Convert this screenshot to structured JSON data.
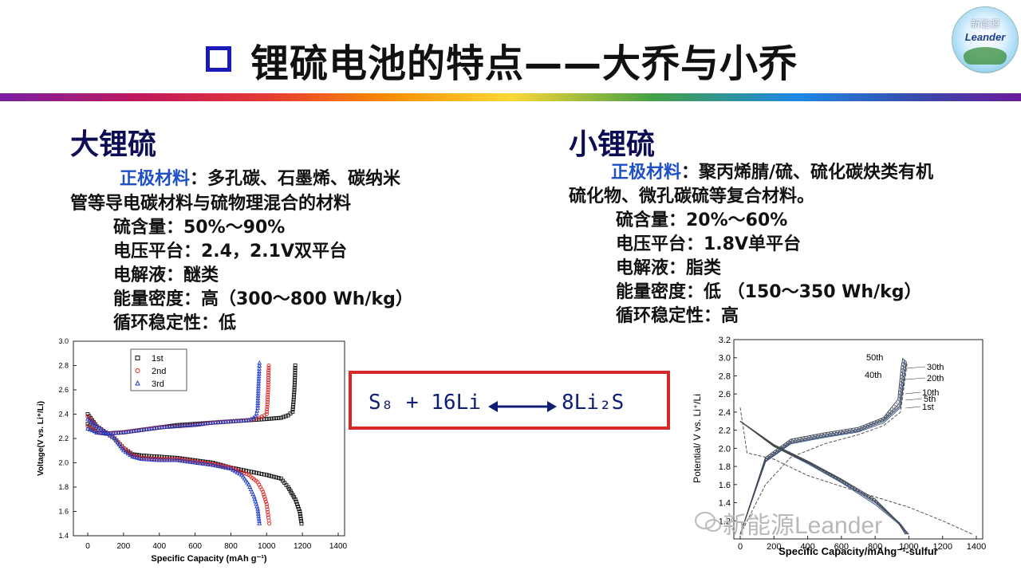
{
  "slide": {
    "title": "锂硫电池的特点——大乔与小乔",
    "logo": {
      "top_text": "新能源",
      "name": "Leander"
    },
    "left": {
      "heading": "大锂硫",
      "cathode_label": "正极材料",
      "cathode_text_1": "：多孔碳、石墨烯、碳纳米",
      "cathode_text_2": "管等导电碳材料与硫物理混合的材料",
      "sulfur_content": "硫含量：50%～90%",
      "voltage_plateau": "电压平台：2.4，2.1V双平台",
      "electrolyte": "电解液：醚类",
      "energy_density": "能量密度：高（300～800 Wh/kg）",
      "cycle_stability": "循环稳定性：低"
    },
    "right": {
      "heading": "小锂硫",
      "cathode_label": "正极材料",
      "cathode_text_1": "：聚丙烯腈/硫、硫化碳炔类有机",
      "cathode_text_2": "硫化物、微孔碳硫等复合材料。",
      "sulfur_content": "硫含量：20%～60%",
      "voltage_plateau": "电压平台：1.8V单平台",
      "electrolyte": "电解液：脂类",
      "energy_density": "能量密度：低 （150～350 Wh/kg）",
      "cycle_stability": "循环稳定性：高"
    },
    "equation": {
      "reactant": "S₈ + 16Li",
      "product": "8Li₂S"
    },
    "watermark": "新能源Leander",
    "colors": {
      "title_marker": "#1a1ab8",
      "heading": "#0d0d55",
      "label_blue": "#2050c8",
      "equation_box": "#d62828",
      "equation_text": "#0e1e73"
    }
  },
  "chart_data": [
    {
      "type": "scatter",
      "title": "",
      "xlabel": "Specific Capacity (mAh g⁻¹)",
      "ylabel": "Voltage(V vs. Li⁺/Li)",
      "xlim": [
        0,
        1400
      ],
      "ylim": [
        1.4,
        3.0
      ],
      "xticks": [
        0,
        200,
        400,
        600,
        800,
        1000,
        1200,
        1400
      ],
      "yticks": [
        1.4,
        1.6,
        1.8,
        2.0,
        2.2,
        2.4,
        2.6,
        2.8,
        3.0
      ],
      "legend": "top-center",
      "series": [
        {
          "name": "1st",
          "color": "#111111",
          "marker": "square",
          "discharge": [
            [
              0,
              2.4
            ],
            [
              50,
              2.3
            ],
            [
              100,
              2.25
            ],
            [
              150,
              2.2
            ],
            [
              200,
              2.12
            ],
            [
              250,
              2.07
            ],
            [
              300,
              2.06
            ],
            [
              400,
              2.05
            ],
            [
              500,
              2.04
            ],
            [
              600,
              2.02
            ],
            [
              700,
              2.0
            ],
            [
              800,
              1.96
            ],
            [
              900,
              1.93
            ],
            [
              1000,
              1.9
            ],
            [
              1080,
              1.87
            ],
            [
              1120,
              1.8
            ],
            [
              1160,
              1.7
            ],
            [
              1185,
              1.6
            ],
            [
              1195,
              1.5
            ]
          ],
          "charge": [
            [
              0,
              2.32
            ],
            [
              50,
              2.25
            ],
            [
              100,
              2.24
            ],
            [
              200,
              2.25
            ],
            [
              300,
              2.27
            ],
            [
              400,
              2.29
            ],
            [
              500,
              2.31
            ],
            [
              600,
              2.32
            ],
            [
              700,
              2.33
            ],
            [
              800,
              2.34
            ],
            [
              900,
              2.35
            ],
            [
              1000,
              2.36
            ],
            [
              1080,
              2.37
            ],
            [
              1120,
              2.39
            ],
            [
              1145,
              2.42
            ],
            [
              1150,
              2.5
            ],
            [
              1155,
              2.6
            ],
            [
              1158,
              2.7
            ],
            [
              1160,
              2.8
            ]
          ]
        },
        {
          "name": "2nd",
          "color": "#e01e1e",
          "marker": "circle",
          "discharge": [
            [
              0,
              2.38
            ],
            [
              50,
              2.3
            ],
            [
              100,
              2.25
            ],
            [
              150,
              2.2
            ],
            [
              200,
              2.12
            ],
            [
              250,
              2.06
            ],
            [
              300,
              2.04
            ],
            [
              400,
              2.03
            ],
            [
              500,
              2.03
            ],
            [
              600,
              2.01
            ],
            [
              700,
              1.99
            ],
            [
              800,
              1.96
            ],
            [
              900,
              1.9
            ],
            [
              950,
              1.84
            ],
            [
              980,
              1.76
            ],
            [
              1000,
              1.66
            ],
            [
              1010,
              1.55
            ],
            [
              1015,
              1.5
            ]
          ],
          "charge": [
            [
              0,
              2.3
            ],
            [
              50,
              2.25
            ],
            [
              100,
              2.24
            ],
            [
              200,
              2.25
            ],
            [
              300,
              2.27
            ],
            [
              400,
              2.29
            ],
            [
              500,
              2.3
            ],
            [
              600,
              2.31
            ],
            [
              700,
              2.33
            ],
            [
              800,
              2.34
            ],
            [
              900,
              2.35
            ],
            [
              960,
              2.37
            ],
            [
              1000,
              2.4
            ],
            [
              1005,
              2.5
            ],
            [
              1008,
              2.6
            ],
            [
              1010,
              2.7
            ],
            [
              1012,
              2.8
            ]
          ]
        },
        {
          "name": "3rd",
          "color": "#1e3cc8",
          "marker": "triangle",
          "discharge": [
            [
              0,
              2.36
            ],
            [
              50,
              2.3
            ],
            [
              100,
              2.25
            ],
            [
              150,
              2.2
            ],
            [
              200,
              2.1
            ],
            [
              250,
              2.05
            ],
            [
              300,
              2.03
            ],
            [
              400,
              2.02
            ],
            [
              500,
              2.02
            ],
            [
              600,
              2.0
            ],
            [
              700,
              1.98
            ],
            [
              800,
              1.95
            ],
            [
              860,
              1.9
            ],
            [
              900,
              1.82
            ],
            [
              930,
              1.72
            ],
            [
              950,
              1.62
            ],
            [
              960,
              1.5
            ]
          ],
          "charge": [
            [
              0,
              2.28
            ],
            [
              50,
              2.25
            ],
            [
              100,
              2.24
            ],
            [
              200,
              2.25
            ],
            [
              300,
              2.27
            ],
            [
              400,
              2.29
            ],
            [
              500,
              2.3
            ],
            [
              600,
              2.31
            ],
            [
              700,
              2.33
            ],
            [
              800,
              2.34
            ],
            [
              900,
              2.35
            ],
            [
              940,
              2.38
            ],
            [
              950,
              2.45
            ],
            [
              952,
              2.55
            ],
            [
              955,
              2.65
            ],
            [
              958,
              2.75
            ],
            [
              960,
              2.82
            ]
          ]
        }
      ]
    },
    {
      "type": "line",
      "title": "",
      "xlabel": "Specific Capacity/mAhg⁻¹-sulfur",
      "ylabel": "Potential/ V vs. Li⁺/Li",
      "xlim": [
        0,
        1400
      ],
      "ylim": [
        1.0,
        3.2
      ],
      "xticks": [
        0,
        200,
        400,
        600,
        800,
        1000,
        1200,
        1400
      ],
      "yticks": [
        1.2,
        1.4,
        1.6,
        1.8,
        2.0,
        2.2,
        2.4,
        2.6,
        2.8,
        3.0,
        3.2
      ],
      "labels": [
        "50th",
        "30th",
        "40th",
        "20th",
        "10th",
        "5th",
        "1st"
      ],
      "series": [
        {
          "name": "1st",
          "discharge": [
            [
              0,
              2.45
            ],
            [
              40,
              1.95
            ],
            [
              200,
              1.88
            ],
            [
              400,
              1.7
            ],
            [
              700,
              1.52
            ],
            [
              1000,
              1.35
            ],
            [
              1200,
              1.2
            ],
            [
              1380,
              1.05
            ]
          ],
          "charge": [
            [
              0,
              1.05
            ],
            [
              150,
              1.6
            ],
            [
              300,
              1.9
            ],
            [
              500,
              2.05
            ],
            [
              700,
              2.15
            ],
            [
              850,
              2.25
            ],
            [
              950,
              2.4
            ],
            [
              980,
              2.8
            ],
            [
              990,
              2.95
            ]
          ]
        },
        {
          "name": "5th",
          "discharge": [
            [
              0,
              2.3
            ],
            [
              200,
              2.02
            ],
            [
              400,
              1.83
            ],
            [
              600,
              1.62
            ],
            [
              800,
              1.38
            ],
            [
              950,
              1.15
            ],
            [
              1000,
              1.05
            ]
          ],
          "charge": [
            [
              0,
              1.05
            ],
            [
              150,
              1.85
            ],
            [
              300,
              2.05
            ],
            [
              500,
              2.12
            ],
            [
              700,
              2.18
            ],
            [
              850,
              2.28
            ],
            [
              950,
              2.45
            ],
            [
              975,
              2.8
            ],
            [
              985,
              2.95
            ]
          ]
        },
        {
          "name": "10th",
          "discharge": [
            [
              0,
              2.3
            ],
            [
              200,
              2.02
            ],
            [
              400,
              1.84
            ],
            [
              600,
              1.63
            ],
            [
              800,
              1.4
            ],
            [
              950,
              1.16
            ],
            [
              1000,
              1.05
            ]
          ],
          "charge": [
            [
              0,
              1.05
            ],
            [
              150,
              1.86
            ],
            [
              300,
              2.06
            ],
            [
              500,
              2.13
            ],
            [
              700,
              2.19
            ],
            [
              850,
              2.3
            ],
            [
              950,
              2.47
            ],
            [
              975,
              2.82
            ],
            [
              985,
              2.96
            ]
          ]
        },
        {
          "name": "20th",
          "discharge": [
            [
              0,
              2.3
            ],
            [
              200,
              2.03
            ],
            [
              400,
              1.85
            ],
            [
              600,
              1.64
            ],
            [
              800,
              1.41
            ],
            [
              950,
              1.17
            ],
            [
              995,
              1.05
            ]
          ],
          "charge": [
            [
              0,
              1.05
            ],
            [
              150,
              1.87
            ],
            [
              300,
              2.07
            ],
            [
              500,
              2.14
            ],
            [
              700,
              2.2
            ],
            [
              850,
              2.31
            ],
            [
              950,
              2.49
            ],
            [
              970,
              2.84
            ],
            [
              980,
              2.97
            ]
          ]
        },
        {
          "name": "30th",
          "discharge": [
            [
              0,
              2.3
            ],
            [
              200,
              2.03
            ],
            [
              400,
              1.85
            ],
            [
              600,
              1.65
            ],
            [
              800,
              1.42
            ],
            [
              940,
              1.18
            ],
            [
              990,
              1.05
            ]
          ],
          "charge": [
            [
              0,
              1.05
            ],
            [
              150,
              1.88
            ],
            [
              300,
              2.08
            ],
            [
              500,
              2.15
            ],
            [
              700,
              2.21
            ],
            [
              850,
              2.32
            ],
            [
              945,
              2.5
            ],
            [
              965,
              2.86
            ],
            [
              975,
              2.98
            ]
          ]
        },
        {
          "name": "40th",
          "discharge": [
            [
              0,
              2.3
            ],
            [
              200,
              2.04
            ],
            [
              400,
              1.86
            ],
            [
              600,
              1.66
            ],
            [
              800,
              1.43
            ],
            [
              935,
              1.19
            ],
            [
              985,
              1.05
            ]
          ],
          "charge": [
            [
              0,
              1.05
            ],
            [
              150,
              1.89
            ],
            [
              300,
              2.09
            ],
            [
              500,
              2.16
            ],
            [
              700,
              2.22
            ],
            [
              850,
              2.33
            ],
            [
              940,
              2.52
            ],
            [
              960,
              2.88
            ],
            [
              970,
              2.99
            ]
          ]
        },
        {
          "name": "50th",
          "discharge": [
            [
              0,
              2.3
            ],
            [
              200,
              2.04
            ],
            [
              400,
              1.86
            ],
            [
              600,
              1.66
            ],
            [
              800,
              1.44
            ],
            [
              930,
              1.2
            ],
            [
              980,
              1.05
            ]
          ],
          "charge": [
            [
              0,
              1.05
            ],
            [
              150,
              1.9
            ],
            [
              300,
              2.1
            ],
            [
              500,
              2.17
            ],
            [
              700,
              2.23
            ],
            [
              850,
              2.34
            ],
            [
              935,
              2.54
            ],
            [
              955,
              2.9
            ],
            [
              965,
              3.0
            ]
          ]
        }
      ]
    }
  ]
}
